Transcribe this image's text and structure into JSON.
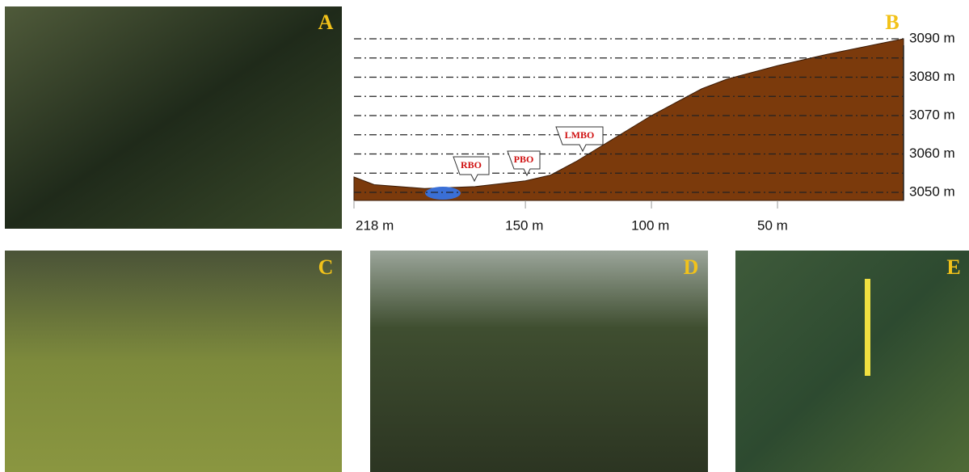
{
  "panel_labels": [
    "A",
    "B",
    "C",
    "D",
    "E"
  ],
  "profile": {
    "xlim": [
      218,
      0
    ],
    "ylim": [
      3050,
      3090
    ],
    "xticks": [
      {
        "value": 218,
        "label": "218 m"
      },
      {
        "value": 150,
        "label": "150 m"
      },
      {
        "value": 100,
        "label": "100 m"
      },
      {
        "value": 50,
        "label": "50 m"
      }
    ],
    "yticks": [
      {
        "value": 3050,
        "label": "3050 m"
      },
      {
        "value": 3060,
        "label": "3060 m"
      },
      {
        "value": 3070,
        "label": "3070 m"
      },
      {
        "value": 3080,
        "label": "3080 m"
      },
      {
        "value": 3090,
        "label": "3090 m"
      }
    ],
    "gridlines": [
      3050,
      3055,
      3060,
      3065,
      3070,
      3075,
      3080,
      3085,
      3090
    ],
    "x": [
      218,
      210,
      190,
      170,
      150,
      140,
      130,
      120,
      110,
      100,
      90,
      80,
      70,
      50,
      30,
      0
    ],
    "elevation": [
      3054,
      3052,
      3051,
      3051.5,
      3053,
      3054.5,
      3058,
      3062,
      3066,
      3070,
      3073.5,
      3077,
      3079.5,
      3083,
      3086,
      3090
    ],
    "ground_color": "#7b3a0c",
    "annotations": [
      "RBO",
      "PBO",
      "LMBO"
    ]
  }
}
